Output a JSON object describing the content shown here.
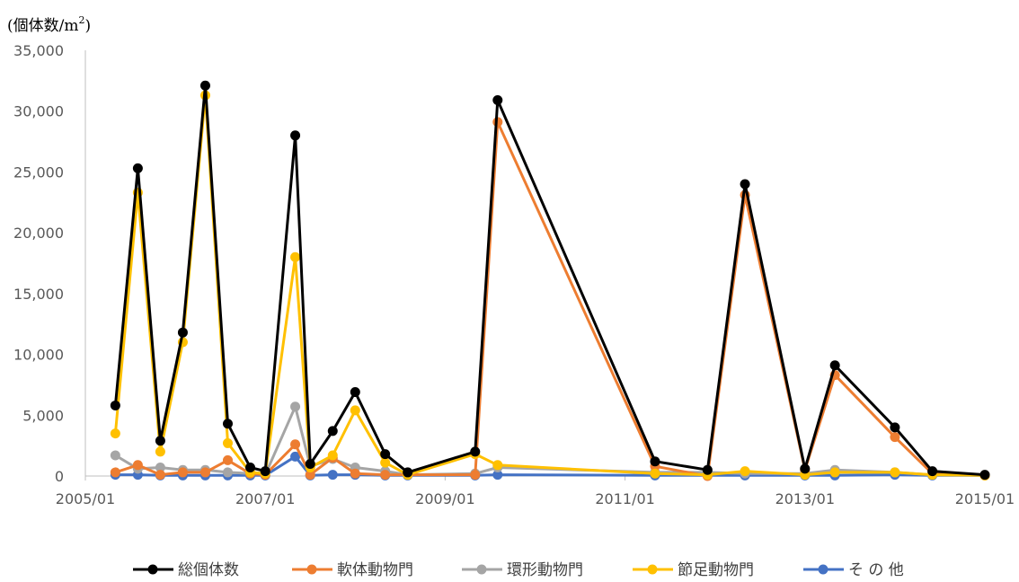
{
  "chart_data": {
    "type": "line",
    "ylabel": "(個体数/m",
    "ylabel_sup": "2",
    "ylabel_close": ")",
    "ylim": [
      0,
      35000
    ],
    "yticks": [
      0,
      5000,
      10000,
      15000,
      20000,
      25000,
      30000,
      35000
    ],
    "ytick_labels": [
      "0",
      "5,000",
      "10,000",
      "15,000",
      "20,000",
      "25,000",
      "30,000",
      "35,000"
    ],
    "xlim": [
      "2005/01",
      "2015/01"
    ],
    "xticks": [
      "2005/01",
      "2007/01",
      "2009/01",
      "2011/01",
      "2013/01",
      "2015/01"
    ],
    "grid": false,
    "legend_position": "bottom",
    "x": [
      "2005/05",
      "2005/08",
      "2005/11",
      "2006/02",
      "2006/05",
      "2006/08",
      "2006/11",
      "2007/01",
      "2007/05",
      "2007/07",
      "2007/10",
      "2008/01",
      "2008/05",
      "2008/08",
      "2009/05",
      "2009/08",
      "2011/05",
      "2011/12",
      "2012/05",
      "2013/01",
      "2013/05",
      "2014/01",
      "2014/06",
      "2015/01"
    ],
    "series": [
      {
        "name": "総個体数",
        "color": "#000000",
        "values": [
          5800,
          25300,
          2900,
          11800,
          32100,
          4300,
          700,
          400,
          28000,
          1000,
          3700,
          6900,
          1800,
          300,
          2000,
          30900,
          1200,
          500,
          24000,
          600,
          9100,
          4000,
          400,
          100
        ]
      },
      {
        "name": "軟体動物門",
        "color": "#ED7D31",
        "values": [
          300,
          900,
          100,
          300,
          300,
          1300,
          200,
          100,
          2600,
          100,
          1500,
          200,
          100,
          100,
          100,
          29100,
          800,
          0,
          23100,
          500,
          8300,
          3200,
          200,
          50
        ]
      },
      {
        "name": "環形動物門",
        "color": "#A5A5A5",
        "values": [
          1700,
          600,
          700,
          500,
          500,
          300,
          200,
          100,
          5700,
          800,
          1400,
          700,
          400,
          100,
          200,
          700,
          300,
          300,
          200,
          200,
          500,
          300,
          100,
          50
        ]
      },
      {
        "name": "節足動物門",
        "color": "#FFC000",
        "values": [
          3500,
          23300,
          2000,
          11000,
          31300,
          2700,
          300,
          200,
          18000,
          700,
          1700,
          5400,
          1100,
          100,
          1800,
          900,
          200,
          100,
          400,
          100,
          300,
          300,
          100,
          50
        ]
      },
      {
        "name": "そ の 他",
        "color": "#4472C4",
        "values": [
          100,
          100,
          50,
          50,
          50,
          50,
          50,
          50,
          1600,
          50,
          100,
          100,
          50,
          50,
          50,
          100,
          50,
          50,
          50,
          50,
          50,
          100,
          50,
          50
        ]
      }
    ]
  }
}
